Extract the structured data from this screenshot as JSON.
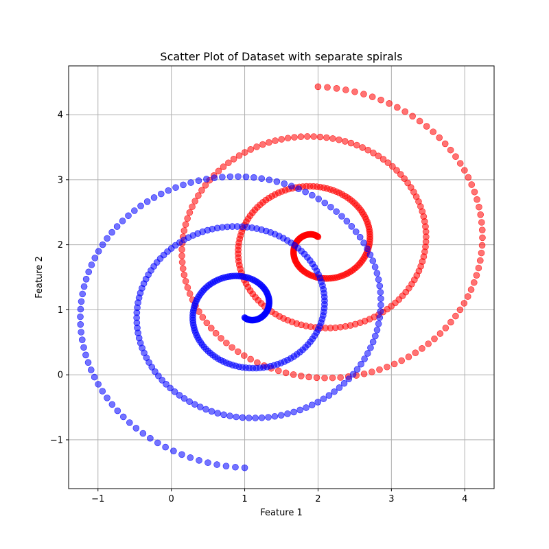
{
  "chart_data": {
    "type": "scatter",
    "title": "Scatter Plot of Dataset with separate spirals",
    "xlabel": "Feature 1",
    "ylabel": "Feature 2",
    "xlim": [
      -1.4,
      4.4
    ],
    "ylim": [
      -1.75,
      4.75
    ],
    "xticks": [
      -1,
      0,
      1,
      2,
      3,
      4
    ],
    "xtick_labels": [
      "−1",
      "0",
      "1",
      "2",
      "3",
      "4"
    ],
    "yticks": [
      -1,
      0,
      1,
      2,
      3,
      4
    ],
    "ytick_labels": [
      "−1",
      "0",
      "1",
      "2",
      "3",
      "4"
    ],
    "grid": true,
    "legend": "none",
    "series": [
      {
        "color": "#ff0000",
        "center": [
          2.0,
          2.0
        ],
        "angle_start_deg": 90,
        "angle_end_deg": 1170,
        "radius_start": 0.0,
        "radius_end": 2.43,
        "radius_offset": 0.12,
        "points": 360,
        "opacity": 0.55
      },
      {
        "color": "#0000ff",
        "center": [
          1.0,
          1.0
        ],
        "angle_start_deg": -90,
        "angle_end_deg": 990,
        "radius_start": 0.0,
        "radius_end": 2.43,
        "radius_offset": 0.12,
        "points": 360,
        "opacity": 0.55
      }
    ]
  }
}
